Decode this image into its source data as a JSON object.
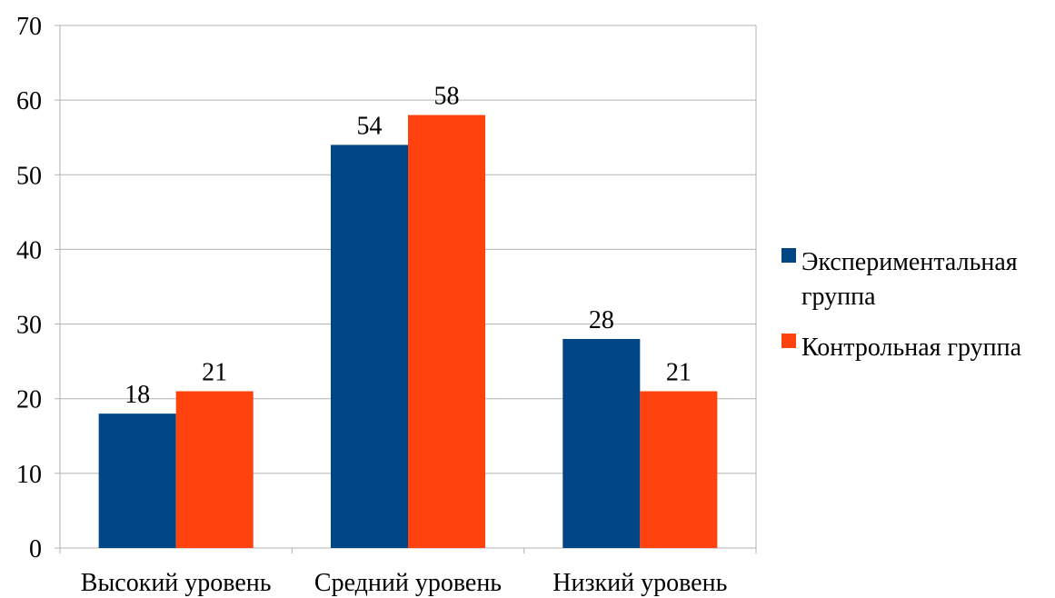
{
  "chart_data": {
    "type": "bar",
    "title": "",
    "xlabel": "",
    "ylabel": "",
    "categories": [
      "Высокий уровень",
      "Средний уровень",
      "Низкий уровень"
    ],
    "series": [
      {
        "name": "Экспериментальная группа",
        "values": [
          18,
          54,
          28
        ],
        "color": "#004586"
      },
      {
        "name": "Контрольная группа",
        "values": [
          21,
          58,
          21
        ],
        "color": "#FF420E"
      }
    ],
    "ylim": [
      0,
      70
    ],
    "yticks": [
      0,
      10,
      20,
      30,
      40,
      50,
      60,
      70
    ],
    "grid": true,
    "legend_position": "right"
  },
  "legend": {
    "items": [
      {
        "lines": [
          "Экспериментальная",
          "группа"
        ]
      },
      {
        "lines": [
          "Контрольная группа"
        ]
      }
    ]
  }
}
